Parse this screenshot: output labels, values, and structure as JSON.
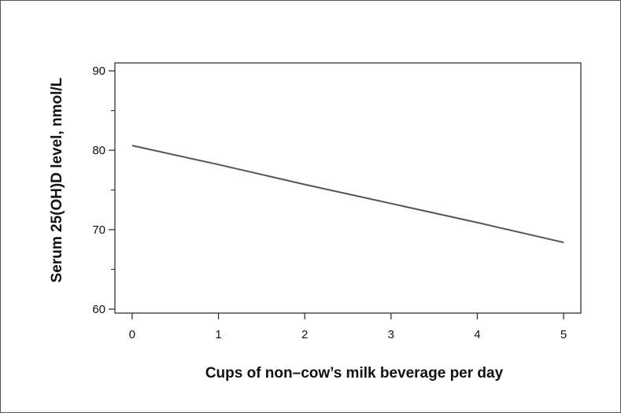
{
  "chart_data": {
    "type": "line",
    "title": "",
    "xlabel": "Cups of non–cow’s milk beverage per day",
    "ylabel": "Serum 25(OH)D level, nmol/L",
    "xlim": [
      -0.2,
      5.2
    ],
    "ylim": [
      59.5,
      91
    ],
    "x_ticks": [
      0,
      1,
      2,
      3,
      4,
      5
    ],
    "y_ticks": [
      60,
      70,
      80,
      90
    ],
    "y_minor_ticks": [
      65,
      75,
      85
    ],
    "grid": false,
    "legend": "none",
    "series": [
      {
        "x": [
          0,
          1,
          2,
          3,
          4,
          5
        ],
        "y": [
          80.6,
          78.2,
          75.7,
          73.3,
          70.9,
          68.4
        ]
      }
    ],
    "colors": {
      "line": "#555555",
      "axis": "#333333",
      "text": "#111111"
    }
  }
}
